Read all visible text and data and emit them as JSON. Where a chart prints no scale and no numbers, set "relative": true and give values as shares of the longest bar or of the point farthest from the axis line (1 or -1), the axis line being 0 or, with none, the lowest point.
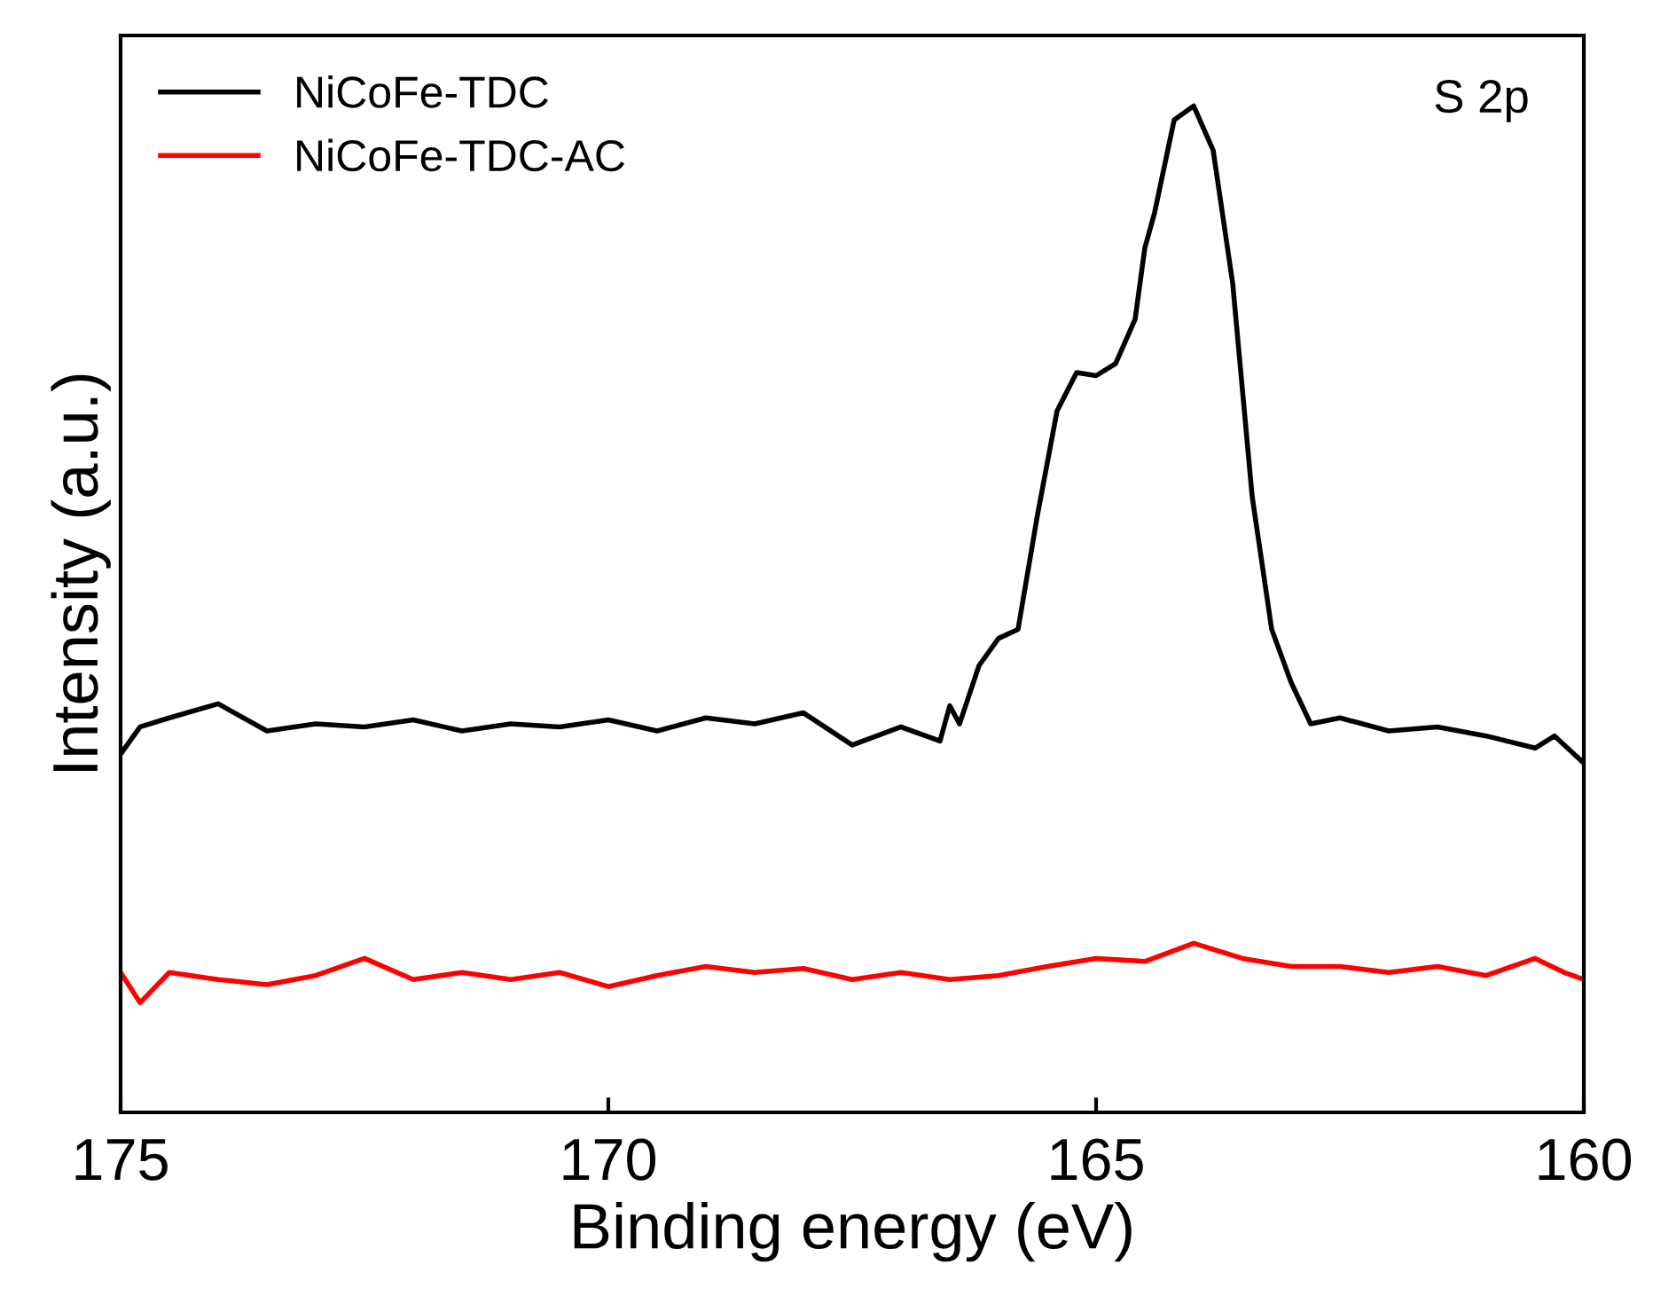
{
  "chart_data": {
    "type": "line",
    "xlabel": "Binding energy (eV)",
    "ylabel": "Intensity (a.u.)",
    "relative": true,
    "xlim": [
      175,
      160
    ],
    "xticks": [
      175,
      170,
      165,
      160
    ],
    "grid": false,
    "legend": "top left",
    "line_style": "solid",
    "annotations": [
      "S 2p"
    ],
    "series": [
      {
        "name": "NiCoFe-TDC",
        "color": "#000000",
        "x": [
          175,
          174.8,
          174.5,
          174.0,
          173.5,
          173,
          172.5,
          172,
          171.5,
          171,
          170.5,
          170,
          169.5,
          169,
          168.5,
          168,
          167.5,
          167,
          166.6,
          166.5,
          166.4,
          166.2,
          166.0,
          165.8,
          165.6,
          165.4,
          165.2,
          165.0,
          164.8,
          164.6,
          164.5,
          164.4,
          164.2,
          164.0,
          163.8,
          163.6,
          163.4,
          163.2,
          163.0,
          162.8,
          162.5,
          162.0,
          161.5,
          161,
          160.5,
          160.3,
          160
        ],
        "values": [
          0.356,
          0.383,
          0.392,
          0.406,
          0.379,
          0.386,
          0.383,
          0.39,
          0.379,
          0.386,
          0.383,
          0.39,
          0.379,
          0.392,
          0.386,
          0.397,
          0.365,
          0.383,
          0.369,
          0.404,
          0.386,
          0.444,
          0.471,
          0.48,
          0.594,
          0.697,
          0.735,
          0.732,
          0.744,
          0.788,
          0.859,
          0.894,
          0.986,
          1,
          0.956,
          0.824,
          0.612,
          0.48,
          0.427,
          0.386,
          0.392,
          0.379,
          0.383,
          0.374,
          0.362,
          0.374,
          0.347
        ]
      },
      {
        "name": "NiCoFe-TDC-AC",
        "color": "#ff0000",
        "x": [
          175,
          174.8,
          174.5,
          174,
          173.5,
          173,
          172.5,
          172,
          171.5,
          171,
          170.5,
          170,
          169.5,
          169,
          168.5,
          168,
          167.5,
          167,
          166.5,
          166,
          165.5,
          165,
          164.5,
          164,
          163.5,
          163,
          162.5,
          162,
          161.5,
          161,
          160.5,
          160.2,
          160
        ],
        "values": [
          0.139,
          0.109,
          0.139,
          0.132,
          0.127,
          0.136,
          0.153,
          0.132,
          0.139,
          0.132,
          0.139,
          0.125,
          0.136,
          0.145,
          0.139,
          0.143,
          0.132,
          0.139,
          0.132,
          0.136,
          0.145,
          0.153,
          0.15,
          0.168,
          0.153,
          0.145,
          0.145,
          0.139,
          0.145,
          0.136,
          0.153,
          0.139,
          0.132
        ]
      }
    ]
  }
}
